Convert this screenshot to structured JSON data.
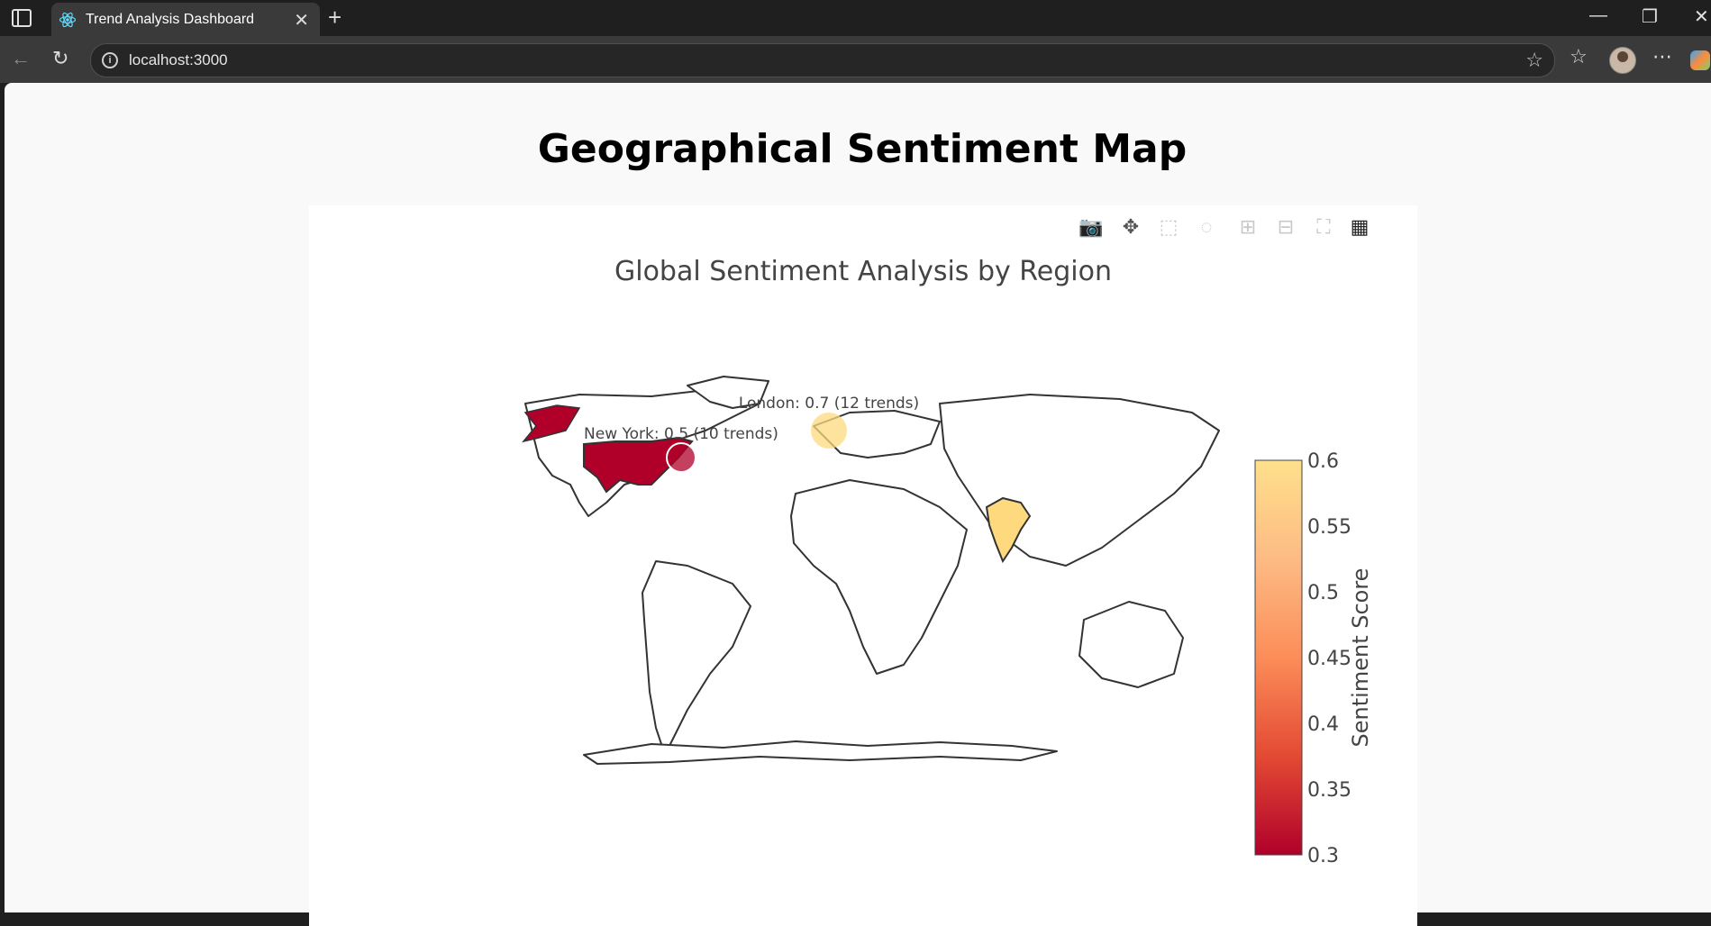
{
  "browser": {
    "tab_title": "Trend Analysis Dashboard",
    "url": "localhost:3000"
  },
  "page": {
    "heading": "Geographical Sentiment Map"
  },
  "chart_data": {
    "type": "choropleth",
    "title": "Global Sentiment Analysis by Region",
    "colorbar": {
      "title": "Sentiment Score",
      "range": [
        0.3,
        0.6
      ],
      "ticks": [
        "0.6",
        "0.55",
        "0.5",
        "0.45",
        "0.4",
        "0.35",
        "0.3"
      ],
      "colorscale": [
        "#b0002a",
        "#e34a33",
        "#fc8d59",
        "#fdbb84",
        "#fee08b"
      ]
    },
    "regions": [
      {
        "name": "United States",
        "value": 0.3
      },
      {
        "name": "India",
        "value": 0.6
      }
    ],
    "markers": [
      {
        "label": "New York: 0.5 (10 trends)",
        "city": "New York",
        "value": 0.5,
        "trends": 10
      },
      {
        "label": "London: 0.7 (12 trends)",
        "city": "London",
        "value": 0.7,
        "trends": 12
      }
    ]
  },
  "colors": {
    "low": "#b0002a",
    "high": "#fed97e"
  }
}
